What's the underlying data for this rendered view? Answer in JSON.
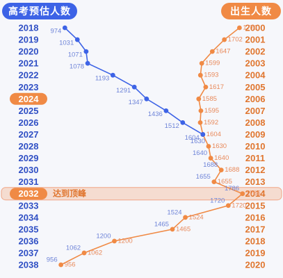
{
  "header": {
    "left_label": "高考预估人数",
    "right_label": "出生人数"
  },
  "highlight": {
    "left_year_2024": "2024",
    "left_year_2032": "2032",
    "annotation": "达到顶峰"
  },
  "colors": {
    "blue": "#3d63e6",
    "orange": "#f08a45",
    "highlight_fill": "#f5dcd0",
    "highlight_stroke": "#f0a585"
  },
  "chart_data": {
    "type": "line",
    "left_years": [
      "2018",
      "2019",
      "2020",
      "2021",
      "2022",
      "2023",
      "2024",
      "2025",
      "2026",
      "2027",
      "2028",
      "2029",
      "2030",
      "2031",
      "2032",
      "2033",
      "2034",
      "2035",
      "2036",
      "2037",
      "2038"
    ],
    "right_years": [
      "2000",
      "2001",
      "2002",
      "2003",
      "2004",
      "2005",
      "2006",
      "2007",
      "2008",
      "2009",
      "2010",
      "2011",
      "2012",
      "2013",
      "2014",
      "2015",
      "2016",
      "2017",
      "2018",
      "2019",
      "2020"
    ],
    "series": [
      {
        "name": "高考预估人数",
        "color": "#3d63e6",
        "values": [
          974,
          1031,
          1071,
          1078,
          1193,
          1291,
          1347,
          1436,
          1512,
          1604,
          1630,
          1640,
          1688,
          1655,
          1786,
          1720,
          1524,
          1465,
          1200,
          1062,
          956
        ]
      },
      {
        "name": "出生人数",
        "color": "#f08a45",
        "values": [
          1771,
          1702,
          1647,
          1599,
          1593,
          1617,
          1585,
          1595,
          1592,
          1604,
          1630,
          1640,
          1688,
          1655,
          1785,
          1720,
          1524,
          1465,
          1200,
          1062,
          956
        ]
      }
    ],
    "xlim": [
      900,
      1900
    ]
  }
}
